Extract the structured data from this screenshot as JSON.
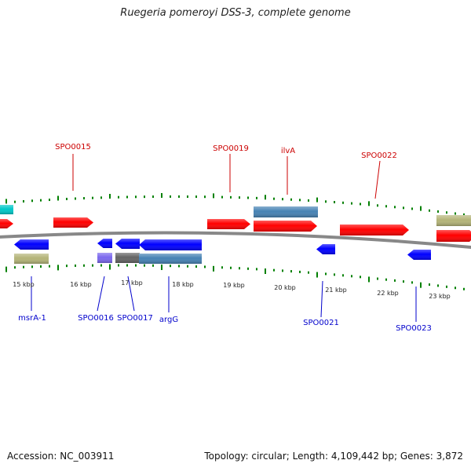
{
  "title": "Ruegeria pomeroyi DSS-3, complete genome",
  "footer": {
    "accession": "Accession: NC_003911",
    "summary": "Topology: circular; Length: 4,109,442 bp; Genes: 3,872"
  },
  "colors": {
    "forward_gene": "#ff0000",
    "reverse_gene": "#0000ff",
    "feature_cyan": "#00c8c8",
    "feature_khaki": "#b4b478",
    "feature_steelblue": "#4682b4",
    "feature_gray": "#646464",
    "feature_slateblue": "#7b68ee",
    "backbone": "#888888",
    "tick": "#008000",
    "top_label": "#cc0000",
    "bottom_label": "#0000cc"
  },
  "scale_labels": [
    "15 kbp",
    "16 kbp",
    "17 kbp",
    "18 kbp",
    "19 kbp",
    "20 kbp",
    "21 kbp",
    "22 kbp",
    "23 kbp"
  ],
  "gene_labels": {
    "top": [
      "SPO0015",
      "SPO0019",
      "ilvA",
      "SPO0022"
    ],
    "bottom": [
      "msrA-1",
      "SPO0016",
      "SPO0017",
      "argG",
      "SPO0021",
      "SPO0023"
    ]
  }
}
